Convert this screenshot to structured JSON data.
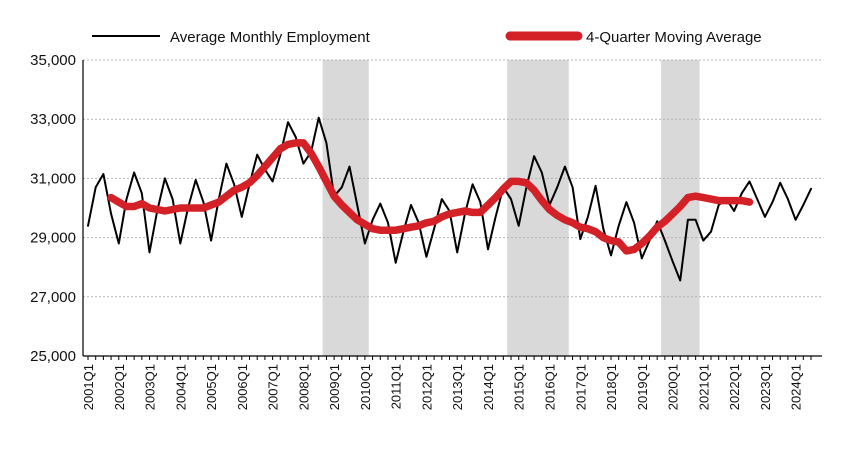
{
  "chart_data": {
    "type": "line",
    "ylim": [
      25000,
      35000
    ],
    "y_ticks": [
      "25,000",
      "27,000",
      "29,000",
      "31,000",
      "33,000",
      "35,000"
    ],
    "x_tick_labels": [
      "2001Q1",
      "2002Q1",
      "2003Q1",
      "2004Q1",
      "2005Q1",
      "2006Q1",
      "2007Q1",
      "2008Q1",
      "2009Q1",
      "2010Q1",
      "2011Q1",
      "2012Q1",
      "2013Q1",
      "2014Q1",
      "2015Q1",
      "2016Q1",
      "2017Q1",
      "2018Q1",
      "2019Q1",
      "2020Q1",
      "2021Q1",
      "2022Q1",
      "2023Q1",
      "2024Q1"
    ],
    "grid": true,
    "legend_position": "top",
    "shaded_periods": [
      {
        "start": "2008Q4",
        "end": "2010Q1"
      },
      {
        "start": "2014Q4",
        "end": "2016Q3"
      },
      {
        "start": "2019Q4",
        "end": "2020Q4"
      }
    ],
    "series": [
      {
        "name": "Average Monthly Employment",
        "color": "#000000",
        "values": [
          29400,
          30700,
          31150,
          29800,
          28800,
          30300,
          31200,
          30500,
          28500,
          29900,
          31000,
          30300,
          28800,
          30000,
          30950,
          30200,
          28900,
          30300,
          31500,
          30800,
          29700,
          30800,
          31800,
          31300,
          30900,
          31800,
          32900,
          32400,
          31500,
          31900,
          33050,
          32200,
          30400,
          30700,
          31400,
          30100,
          28800,
          29600,
          30150,
          29500,
          28150,
          29200,
          30100,
          29500,
          28350,
          29300,
          30300,
          29900,
          28500,
          29800,
          30800,
          30200,
          28600,
          29700,
          30700,
          30300,
          29400,
          30700,
          31750,
          31200,
          30100,
          30700,
          31400,
          30700,
          28950,
          29700,
          30750,
          29300,
          28400,
          29400,
          30200,
          29500,
          28300,
          28900,
          29550,
          28900,
          28200,
          27550,
          29600,
          29600,
          28900,
          29200,
          30100,
          30300,
          29900,
          30500,
          30900,
          30300,
          29700,
          30200,
          30850,
          30300,
          29600,
          30100,
          30650
        ]
      },
      {
        "name": "4-Quarter Moving Average",
        "color": "#d42027",
        "start_index": 3,
        "values": [
          30350,
          30200,
          30050,
          30050,
          30150,
          30000,
          29950,
          29900,
          29950,
          30000,
          30000,
          30000,
          30000,
          30100,
          30200,
          30400,
          30600,
          30700,
          30850,
          31100,
          31400,
          31700,
          32000,
          32150,
          32200,
          32200,
          31850,
          31400,
          30900,
          30400,
          30100,
          29850,
          29600,
          29450,
          29300,
          29250,
          29250,
          29250,
          29300,
          29350,
          29400,
          29500,
          29550,
          29700,
          29800,
          29850,
          29900,
          29850,
          29850,
          30100,
          30350,
          30650,
          30900,
          30900,
          30850,
          30600,
          30250,
          29950,
          29750,
          29600,
          29500,
          29350,
          29300,
          29200,
          29000,
          28900,
          28850,
          28550,
          28600,
          28800,
          29050,
          29350,
          29550,
          29800,
          30050,
          30350,
          30400,
          30350,
          30300,
          30250,
          30250,
          30250,
          30250,
          30200
        ]
      }
    ]
  }
}
